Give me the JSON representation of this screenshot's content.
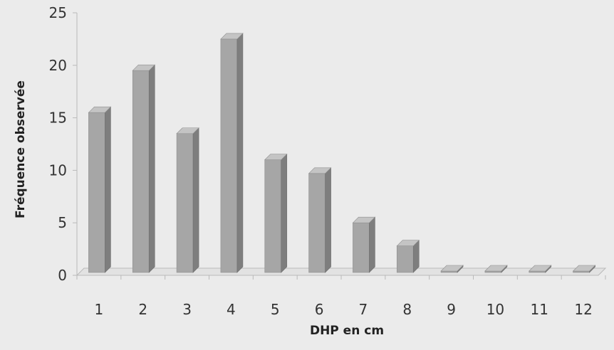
{
  "chart_data": {
    "type": "bar",
    "title": "",
    "xlabel": "DHP en cm",
    "ylabel": "Fréquence observée",
    "categories": [
      "1",
      "2",
      "3",
      "4",
      "5",
      "6",
      "7",
      "8",
      "9",
      "10",
      "11",
      "12"
    ],
    "values": [
      15.5,
      19.5,
      13.5,
      22.5,
      11,
      9.7,
      5,
      2.8,
      0.3,
      0.3,
      0,
      0
    ],
    "ylim": [
      0,
      25
    ],
    "yticks": [
      "0",
      "5",
      "10",
      "15",
      "20",
      "25"
    ],
    "grid": false,
    "legend": "none",
    "style": "3d-column",
    "colors": {
      "bar_front": "#a6a6a6",
      "bar_side": "#7e7e7e",
      "bar_top": "#c4c4c4",
      "axis": "#b9b9b9",
      "background": "#ebebeb"
    }
  }
}
